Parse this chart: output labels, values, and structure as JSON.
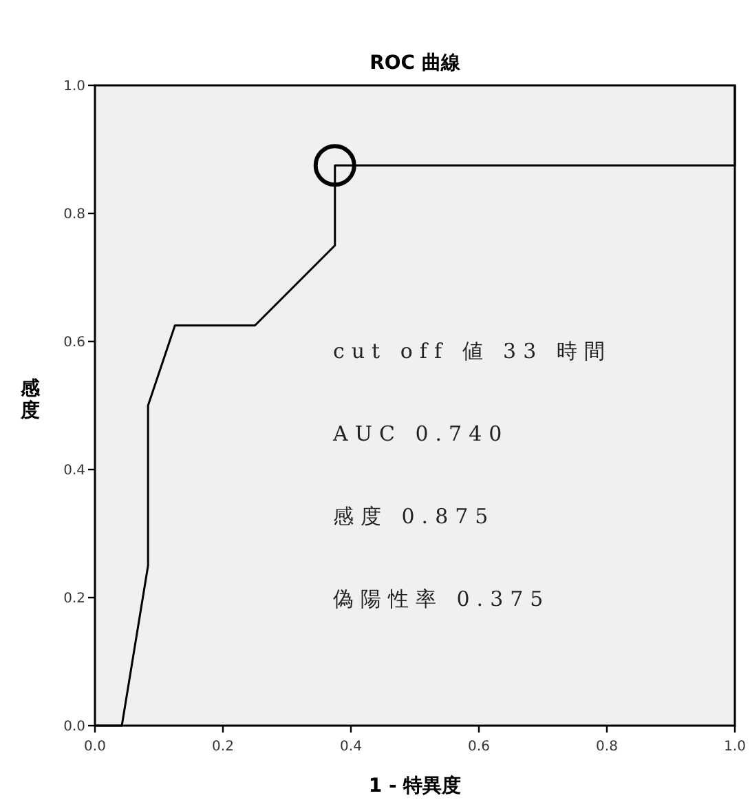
{
  "chart_data": {
    "type": "line",
    "title": "ROC 曲線",
    "xlabel": "1 - 特異度",
    "ylabel": "感度",
    "xlim": [
      0,
      1
    ],
    "ylim": [
      0,
      1
    ],
    "xticks": [
      {
        "value": 0,
        "label": "0.0"
      },
      {
        "value": 0.2,
        "label": "0.2"
      },
      {
        "value": 0.4,
        "label": "0.4"
      },
      {
        "value": 0.6,
        "label": "0.6"
      },
      {
        "value": 0.8,
        "label": "0.8"
      },
      {
        "value": 1,
        "label": "1.0"
      }
    ],
    "yticks": [
      {
        "value": 0,
        "label": "0.0"
      },
      {
        "value": 0.2,
        "label": "0.2"
      },
      {
        "value": 0.4,
        "label": "0.4"
      },
      {
        "value": 0.6,
        "label": "0.6"
      },
      {
        "value": 0.8,
        "label": "0.8"
      },
      {
        "value": 1,
        "label": "1.0"
      }
    ],
    "grid": false,
    "series": [
      {
        "color": "#000000",
        "marker": "none",
        "line_style": "solid",
        "x": [
          0,
          0.042,
          0.083,
          0.083,
          0.125,
          0.25,
          0.375,
          0.375,
          1,
          1
        ],
        "values": [
          0,
          0,
          0.25,
          0.5,
          0.625,
          0.625,
          0.75,
          0.875,
          0.875,
          1
        ]
      },
      {
        "type": "scatter",
        "color": "#000000",
        "marker": "circle",
        "x": [
          0.375
        ],
        "values": [
          0.875
        ]
      }
    ],
    "annotations": [
      "cut off 値 33 時間",
      "AUC 0.740",
      "感度 0.875",
      "偽陽性率 0.375"
    ]
  }
}
